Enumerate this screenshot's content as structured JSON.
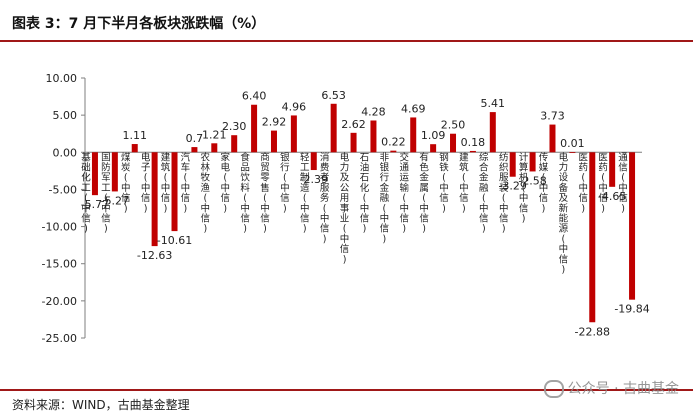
{
  "header": {
    "title": "图表 3：7 月下半月各板块涨跌幅（%）"
  },
  "footer": {
    "source": "资料来源：WIND，古曲基金整理",
    "watermark": "公众号 · 古曲基金"
  },
  "colors": {
    "bar": "#c00000",
    "axis": "#7f7f7f",
    "accent_line": "#a01818"
  },
  "chart_data": {
    "type": "bar",
    "title": "图表 3：7 月下半月各板块涨跌幅（%）",
    "xlabel": "",
    "ylabel": "",
    "ylim": [
      -25,
      10
    ],
    "yticks": [
      10,
      5,
      0,
      -5,
      -10,
      -15,
      -20,
      -25
    ],
    "ytick_labels": [
      "10.00",
      "5.00",
      "0.00",
      "-5.00",
      "-10.00",
      "-15.00",
      "-20.00",
      "-25.00"
    ],
    "grid": false,
    "legend": "none",
    "categories": [
      "基础化工(中信)",
      "国防军工(中信)",
      "煤炭(中信)",
      "电子(中信)",
      "建筑(中信)",
      "汽车(中信)",
      "农林牧渔(中信)",
      "家电(中信)",
      "食品饮料(中信)",
      "商贸零售(中信)",
      "银行(中信)",
      "轻工制造(中信)",
      "消费者服务(中信)",
      "电力及公用事业(中信)",
      "石油石化(中信)",
      "非银行金融(中信)",
      "交通运输(中信)",
      "有色金属(中信)",
      "钢铁(中信)",
      "建筑(中信)",
      "综合金融(中信)",
      "纺织服装(中信)",
      "计算机(中信)",
      "传媒(中信)",
      "电力设备及新能源(中信)",
      "医药(中信)",
      "医药(中信)",
      "通信(中信)"
    ],
    "values": [
      -5.77,
      -5.27,
      1.11,
      -12.63,
      -10.61,
      0.7,
      1.21,
      2.3,
      6.4,
      2.92,
      4.96,
      -2.39,
      6.53,
      2.62,
      4.28,
      0.22,
      4.69,
      1.09,
      2.5,
      0.18,
      5.41,
      -3.29,
      -2.58,
      3.73,
      0.01,
      -22.88,
      -4.65,
      -19.84
    ],
    "data_labels": [
      "-5.77",
      "-5.27",
      "1.11",
      "-12.63",
      "-10.61",
      "0.7",
      "1.21",
      "2.30",
      "6.40",
      "2.92",
      "4.96",
      "-2.39",
      "6.53",
      "2.62",
      "4.28",
      "0.22",
      "4.69",
      "1.09",
      "2.50",
      "0.18",
      "5.41",
      "-3.29",
      "-2.58",
      "3.73",
      "0.01",
      "-22.88",
      "-4.65",
      "-19.84"
    ]
  }
}
